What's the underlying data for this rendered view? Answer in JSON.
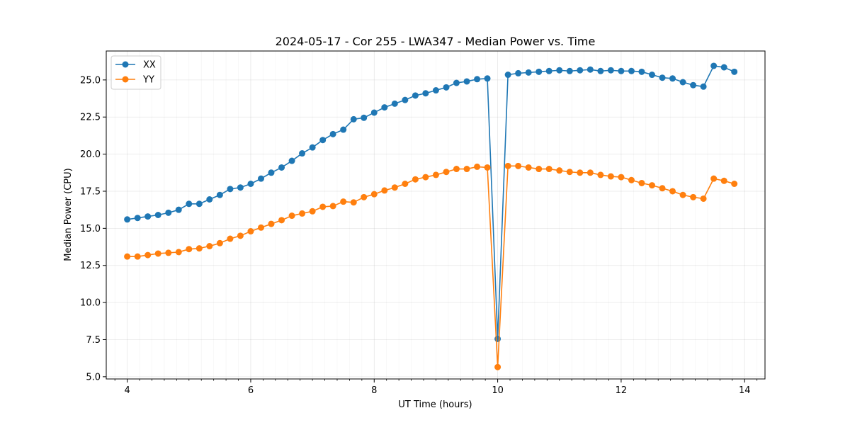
{
  "chart_data": {
    "type": "line",
    "title": "2024-05-17 - Cor 255 - LWA347 - Median Power vs. Time",
    "xlabel": "UT Time (hours)",
    "ylabel": "Median Power (CPU)",
    "xlim": [
      3.66,
      14.33
    ],
    "ylim": [
      4.85,
      26.95
    ],
    "xticks": [
      4,
      6,
      8,
      10,
      12,
      14
    ],
    "yticks": [
      5.0,
      7.5,
      10.0,
      12.5,
      15.0,
      17.5,
      20.0,
      22.5,
      25.0
    ],
    "ytick_labels": [
      "5.0",
      "7.5",
      "10.0",
      "12.5",
      "15.0",
      "17.5",
      "20.0",
      "22.5",
      "25.0"
    ],
    "xtick_labels": [
      "4",
      "6",
      "8",
      "10",
      "12",
      "14"
    ],
    "grid": true,
    "legend_position": "top-left",
    "x": [
      4.0,
      4.167,
      4.333,
      4.5,
      4.667,
      4.833,
      5.0,
      5.167,
      5.333,
      5.5,
      5.667,
      5.833,
      6.0,
      6.167,
      6.333,
      6.5,
      6.667,
      6.833,
      7.0,
      7.167,
      7.333,
      7.5,
      7.667,
      7.833,
      8.0,
      8.167,
      8.333,
      8.5,
      8.667,
      8.833,
      9.0,
      9.167,
      9.333,
      9.5,
      9.667,
      9.833,
      10.0,
      10.167,
      10.333,
      10.5,
      10.667,
      10.833,
      11.0,
      11.167,
      11.333,
      11.5,
      11.667,
      11.833,
      12.0,
      12.167,
      12.333,
      12.5,
      12.667,
      12.833,
      13.0,
      13.167,
      13.333,
      13.5,
      13.667,
      13.833
    ],
    "series": [
      {
        "name": "XX",
        "color": "#1f77b4",
        "values": [
          15.6,
          15.7,
          15.8,
          15.9,
          16.05,
          16.25,
          16.65,
          16.65,
          16.95,
          17.25,
          17.65,
          17.75,
          18.0,
          18.35,
          18.75,
          19.1,
          19.55,
          20.05,
          20.45,
          20.95,
          21.35,
          21.65,
          22.35,
          22.45,
          22.8,
          23.15,
          23.4,
          23.65,
          23.95,
          24.1,
          24.3,
          24.5,
          24.8,
          24.9,
          25.05,
          25.1,
          7.55,
          25.35,
          25.45,
          25.5,
          25.55,
          25.6,
          25.65,
          25.6,
          25.65,
          25.7,
          25.6,
          25.65,
          25.6,
          25.6,
          25.55,
          25.35,
          25.15,
          25.1,
          24.85,
          24.65,
          24.55,
          25.95,
          25.85,
          25.55
        ]
      },
      {
        "name": "YY",
        "color": "#ff7f0e",
        "values": [
          13.1,
          13.1,
          13.2,
          13.3,
          13.35,
          13.4,
          13.6,
          13.65,
          13.8,
          14.0,
          14.3,
          14.5,
          14.8,
          15.05,
          15.3,
          15.55,
          15.85,
          16.0,
          16.15,
          16.45,
          16.5,
          16.8,
          16.75,
          17.1,
          17.3,
          17.55,
          17.75,
          18.0,
          18.3,
          18.45,
          18.6,
          18.8,
          19.0,
          19.0,
          19.15,
          19.1,
          5.65,
          19.2,
          19.2,
          19.1,
          19.0,
          19.0,
          18.9,
          18.8,
          18.75,
          18.75,
          18.6,
          18.5,
          18.45,
          18.25,
          18.05,
          17.9,
          17.7,
          17.5,
          17.25,
          17.1,
          17.0,
          18.35,
          18.2,
          18.0
        ]
      }
    ]
  }
}
